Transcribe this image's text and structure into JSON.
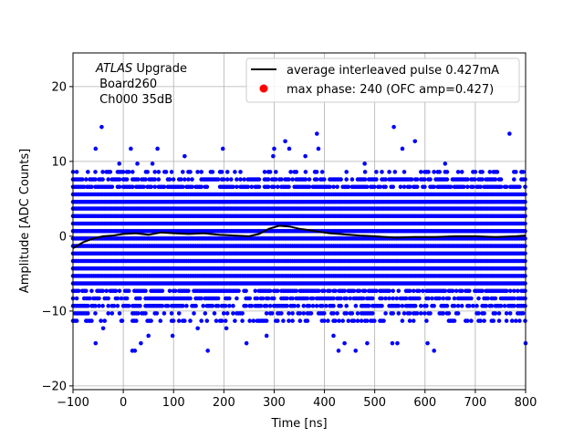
{
  "chart_data": {
    "type": "scatter",
    "title": "",
    "xlabel": "Time [ns]",
    "ylabel": "Amplitude [ADC Counts]",
    "xlim": [
      -100,
      800
    ],
    "ylim": [
      -20.5,
      24.5
    ],
    "xticks": [
      -100,
      0,
      100,
      200,
      300,
      400,
      500,
      600,
      700,
      800
    ],
    "yticks": [
      -20,
      -10,
      0,
      10,
      20
    ],
    "grid": true,
    "annotation": {
      "italic": "ATLAS",
      "line1_rest": " Upgrade",
      "line2": " Board260",
      "line3": " Ch000 35dB"
    },
    "legend": {
      "placement": "top-right",
      "entries": [
        {
          "label": "average interleaved pulse 0.427mA",
          "kind": "line",
          "color": "#000000"
        },
        {
          "label": "max phase: 240 (OFC amp=0.427)",
          "kind": "marker",
          "color": "#ff0000"
        }
      ]
    },
    "series": [
      {
        "name": "samples",
        "color": "#0000ff",
        "points": [
          [
            -72,
            6.6
          ],
          [
            -55,
            11.7
          ],
          [
            -43,
            14.6
          ],
          [
            -40,
            -12.3
          ],
          [
            -55,
            -14.3
          ],
          [
            -8,
            9.7
          ],
          [
            -2,
            -11.3
          ],
          [
            15,
            11.7
          ],
          [
            18,
            -15.3
          ],
          [
            23,
            -15.3
          ],
          [
            28,
            9.7
          ],
          [
            35,
            -14.3
          ],
          [
            45,
            8.6
          ],
          [
            50,
            -13.3
          ],
          [
            58,
            9.7
          ],
          [
            68,
            11.7
          ],
          [
            82,
            8.6
          ],
          [
            98,
            -13.3
          ],
          [
            122,
            10.7
          ],
          [
            148,
            -12.3
          ],
          [
            168,
            -15.3
          ],
          [
            198,
            11.7
          ],
          [
            205,
            -12.3
          ],
          [
            245,
            -14.3
          ],
          [
            285,
            -13.3
          ],
          [
            298,
            10.7
          ],
          [
            300,
            11.7
          ],
          [
            322,
            12.7
          ],
          [
            330,
            11.7
          ],
          [
            362,
            10.7
          ],
          [
            382,
            8.6
          ],
          [
            385,
            13.7
          ],
          [
            388,
            11.7
          ],
          [
            395,
            -11.3
          ],
          [
            418,
            -13.3
          ],
          [
            428,
            -15.3
          ],
          [
            440,
            -14.3
          ],
          [
            462,
            -15.3
          ],
          [
            480,
            9.7
          ],
          [
            485,
            -14.3
          ],
          [
            535,
            -14.3
          ],
          [
            538,
            14.6
          ],
          [
            545,
            -14.3
          ],
          [
            555,
            11.7
          ],
          [
            580,
            12.7
          ],
          [
            605,
            -14.3
          ],
          [
            618,
            -15.3
          ],
          [
            640,
            9.7
          ],
          [
            700,
            8.6
          ],
          [
            768,
            13.7
          ],
          [
            800,
            -14.3
          ],
          [
            795,
            -10.3
          ]
        ]
      }
    ],
    "band": {
      "color": "#0000ff",
      "x_step": 3.7,
      "levels": [
        6.6,
        5.6,
        4.6,
        3.7,
        2.7,
        1.7,
        0.7,
        -0.3,
        -1.3,
        -2.3,
        -3.3,
        -4.3,
        -5.3,
        -6.3,
        -7.3,
        -8.3,
        -9.3,
        -10.3,
        -11.3,
        7.6,
        8.6
      ]
    },
    "average_pulse": {
      "color": "#000000",
      "x": [
        -100,
        -80,
        -60,
        -40,
        -20,
        0,
        25,
        50,
        75,
        100,
        130,
        160,
        190,
        220,
        250,
        270,
        290,
        310,
        330,
        350,
        370,
        390,
        410,
        430,
        450,
        470,
        500,
        540,
        580,
        620,
        660,
        700,
        740,
        780,
        800
      ],
      "y": [
        -1.6,
        -0.8,
        -0.3,
        0.0,
        0.1,
        0.3,
        0.4,
        0.2,
        0.5,
        0.4,
        0.3,
        0.4,
        0.2,
        0.1,
        0.0,
        0.3,
        1.0,
        1.4,
        1.3,
        1.0,
        0.8,
        0.6,
        0.4,
        0.3,
        0.2,
        0.1,
        0.0,
        -0.2,
        -0.1,
        -0.1,
        0.0,
        0.0,
        -0.1,
        0.0,
        0.1
      ]
    }
  }
}
